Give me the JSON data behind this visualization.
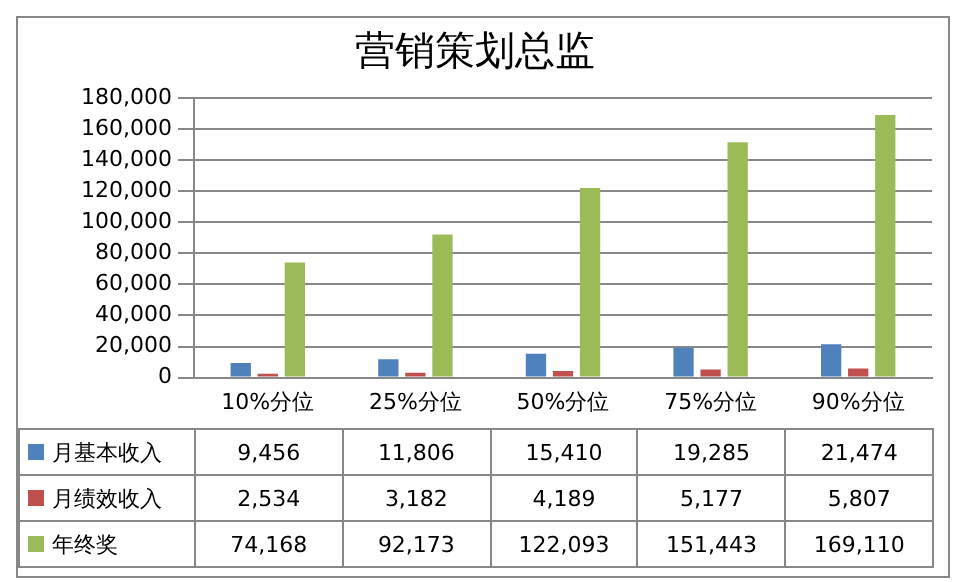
{
  "chart_data": {
    "type": "bar",
    "title": "营销策划总监",
    "categories": [
      "10%分位",
      "25%分位",
      "50%分位",
      "75%分位",
      "90%分位"
    ],
    "series": [
      {
        "name": "月基本收入",
        "color": "#4f81bd",
        "values": [
          9456,
          11806,
          15410,
          19285,
          21474
        ],
        "value_labels": [
          "9,456",
          "11,806",
          "15,410",
          "19,285",
          "21,474"
        ]
      },
      {
        "name": "月绩效收入",
        "color": "#c0504d",
        "values": [
          2534,
          3182,
          4189,
          5177,
          5807
        ],
        "value_labels": [
          "2,534",
          "3,182",
          "4,189",
          "5,177",
          "5,807"
        ]
      },
      {
        "name": "年终奖",
        "color": "#9bbb59",
        "values": [
          74168,
          92173,
          122093,
          151443,
          169110
        ],
        "value_labels": [
          "74,168",
          "92,173",
          "122,093",
          "151,443",
          "169,110"
        ]
      }
    ],
    "ylim": [
      0,
      180000
    ],
    "yticks": [
      {
        "value": 0,
        "label": "0"
      },
      {
        "value": 20000,
        "label": "20,000"
      },
      {
        "value": 40000,
        "label": "40,000"
      },
      {
        "value": 60000,
        "label": "60,000"
      },
      {
        "value": 80000,
        "label": "80,000"
      },
      {
        "value": 100000,
        "label": "100,000"
      },
      {
        "value": 120000,
        "label": "120,000"
      },
      {
        "value": 140000,
        "label": "140,000"
      },
      {
        "value": 160000,
        "label": "160,000"
      },
      {
        "value": 180000,
        "label": "180,000"
      }
    ],
    "grid": "y",
    "legend": "bottom"
  }
}
